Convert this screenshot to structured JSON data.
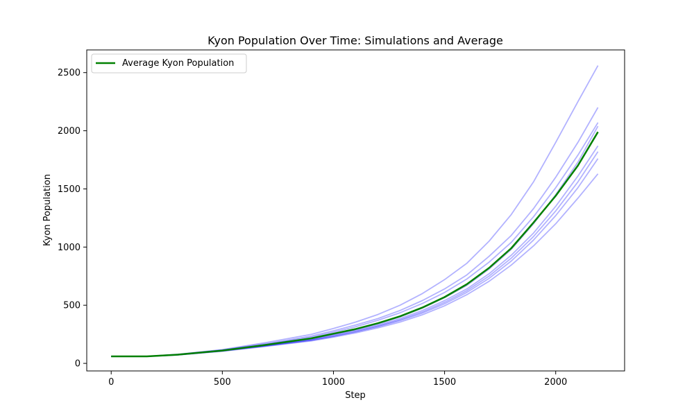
{
  "chart_data": {
    "type": "line",
    "title": "Kyon Population Over Time: Simulations and Average",
    "xlabel": "Step",
    "ylabel": "Kyon Population",
    "xlim": [
      -110,
      2310
    ],
    "ylim": [
      -65,
      2695
    ],
    "x_ticks": [
      0,
      500,
      1000,
      1500,
      2000
    ],
    "y_ticks": [
      0,
      500,
      1000,
      1500,
      2000,
      2500
    ],
    "grid": false,
    "legend": {
      "location": "upper left",
      "entries": [
        "Average Kyon Population"
      ]
    },
    "x": [
      0,
      160,
      300,
      500,
      700,
      900,
      1000,
      1100,
      1200,
      1300,
      1400,
      1500,
      1600,
      1700,
      1800,
      1900,
      2000,
      2100,
      2190
    ],
    "series": [
      {
        "name": "Average Kyon Population",
        "color": "#008000",
        "values": [
          60,
          60,
          75,
          110,
          160,
          215,
          255,
          295,
          345,
          405,
          480,
          570,
          680,
          820,
          990,
          1210,
          1440,
          1700,
          1990
        ]
      },
      {
        "color": "#0000ff",
        "opacity": 0.3,
        "values": [
          60,
          60,
          78,
          118,
          180,
          250,
          300,
          355,
          420,
          500,
          600,
          720,
          860,
          1050,
          1280,
          1560,
          1900,
          2250,
          2560
        ]
      },
      {
        "color": "#0000ff",
        "opacity": 0.3,
        "values": [
          60,
          60,
          77,
          115,
          170,
          235,
          280,
          330,
          385,
          455,
          540,
          640,
          760,
          920,
          1100,
          1330,
          1600,
          1900,
          2200
        ]
      },
      {
        "color": "#0000ff",
        "opacity": 0.3,
        "values": [
          60,
          60,
          76,
          113,
          165,
          225,
          268,
          315,
          370,
          435,
          515,
          610,
          725,
          870,
          1040,
          1260,
          1510,
          1790,
          2070
        ]
      },
      {
        "color": "#0000ff",
        "opacity": 0.3,
        "values": [
          60,
          60,
          75,
          110,
          158,
          210,
          248,
          290,
          338,
          400,
          475,
          565,
          670,
          810,
          980,
          1200,
          1450,
          1730,
          2040
        ]
      },
      {
        "color": "#0000ff",
        "opacity": 0.3,
        "values": [
          60,
          60,
          74,
          108,
          155,
          205,
          242,
          283,
          328,
          385,
          455,
          540,
          640,
          770,
          930,
          1120,
          1350,
          1610,
          1870
        ]
      },
      {
        "color": "#0000ff",
        "opacity": 0.3,
        "values": [
          60,
          60,
          74,
          107,
          152,
          200,
          235,
          275,
          320,
          375,
          442,
          525,
          625,
          750,
          905,
          1090,
          1310,
          1560,
          1820
        ]
      },
      {
        "color": "#0000ff",
        "opacity": 0.3,
        "values": [
          60,
          60,
          73,
          106,
          150,
          198,
          232,
          270,
          315,
          368,
          432,
          512,
          610,
          730,
          880,
          1060,
          1270,
          1510,
          1760
        ]
      },
      {
        "color": "#0000ff",
        "opacity": 0.3,
        "values": [
          60,
          60,
          72,
          104,
          147,
          193,
          226,
          262,
          305,
          355,
          418,
          495,
          590,
          705,
          845,
          1010,
          1200,
          1420,
          1630
        ]
      }
    ]
  }
}
